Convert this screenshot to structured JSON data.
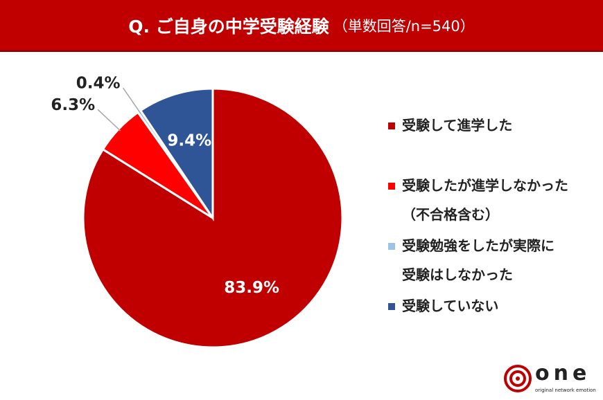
{
  "chart_data": {
    "type": "pie",
    "title": "Q. ご自身の中学受験経験",
    "subtitle": "（単数回答/n=540）",
    "categories": [
      "受験して進学した",
      "受験したが進学しなかった\n（不合格含む）",
      "受験勉強をしたが実際に\n受験はしなかった",
      "受験していない"
    ],
    "values": [
      83.9,
      6.3,
      0.4,
      9.4
    ],
    "value_labels": [
      "83.9%",
      "6.3%",
      "0.4%",
      "9.4%"
    ],
    "colors": [
      "#c00000",
      "#ff0000",
      "#9dc3e6",
      "#2f5597"
    ],
    "legend": "right"
  },
  "logo": {
    "name": "one",
    "tagline": "original network emotion"
  }
}
